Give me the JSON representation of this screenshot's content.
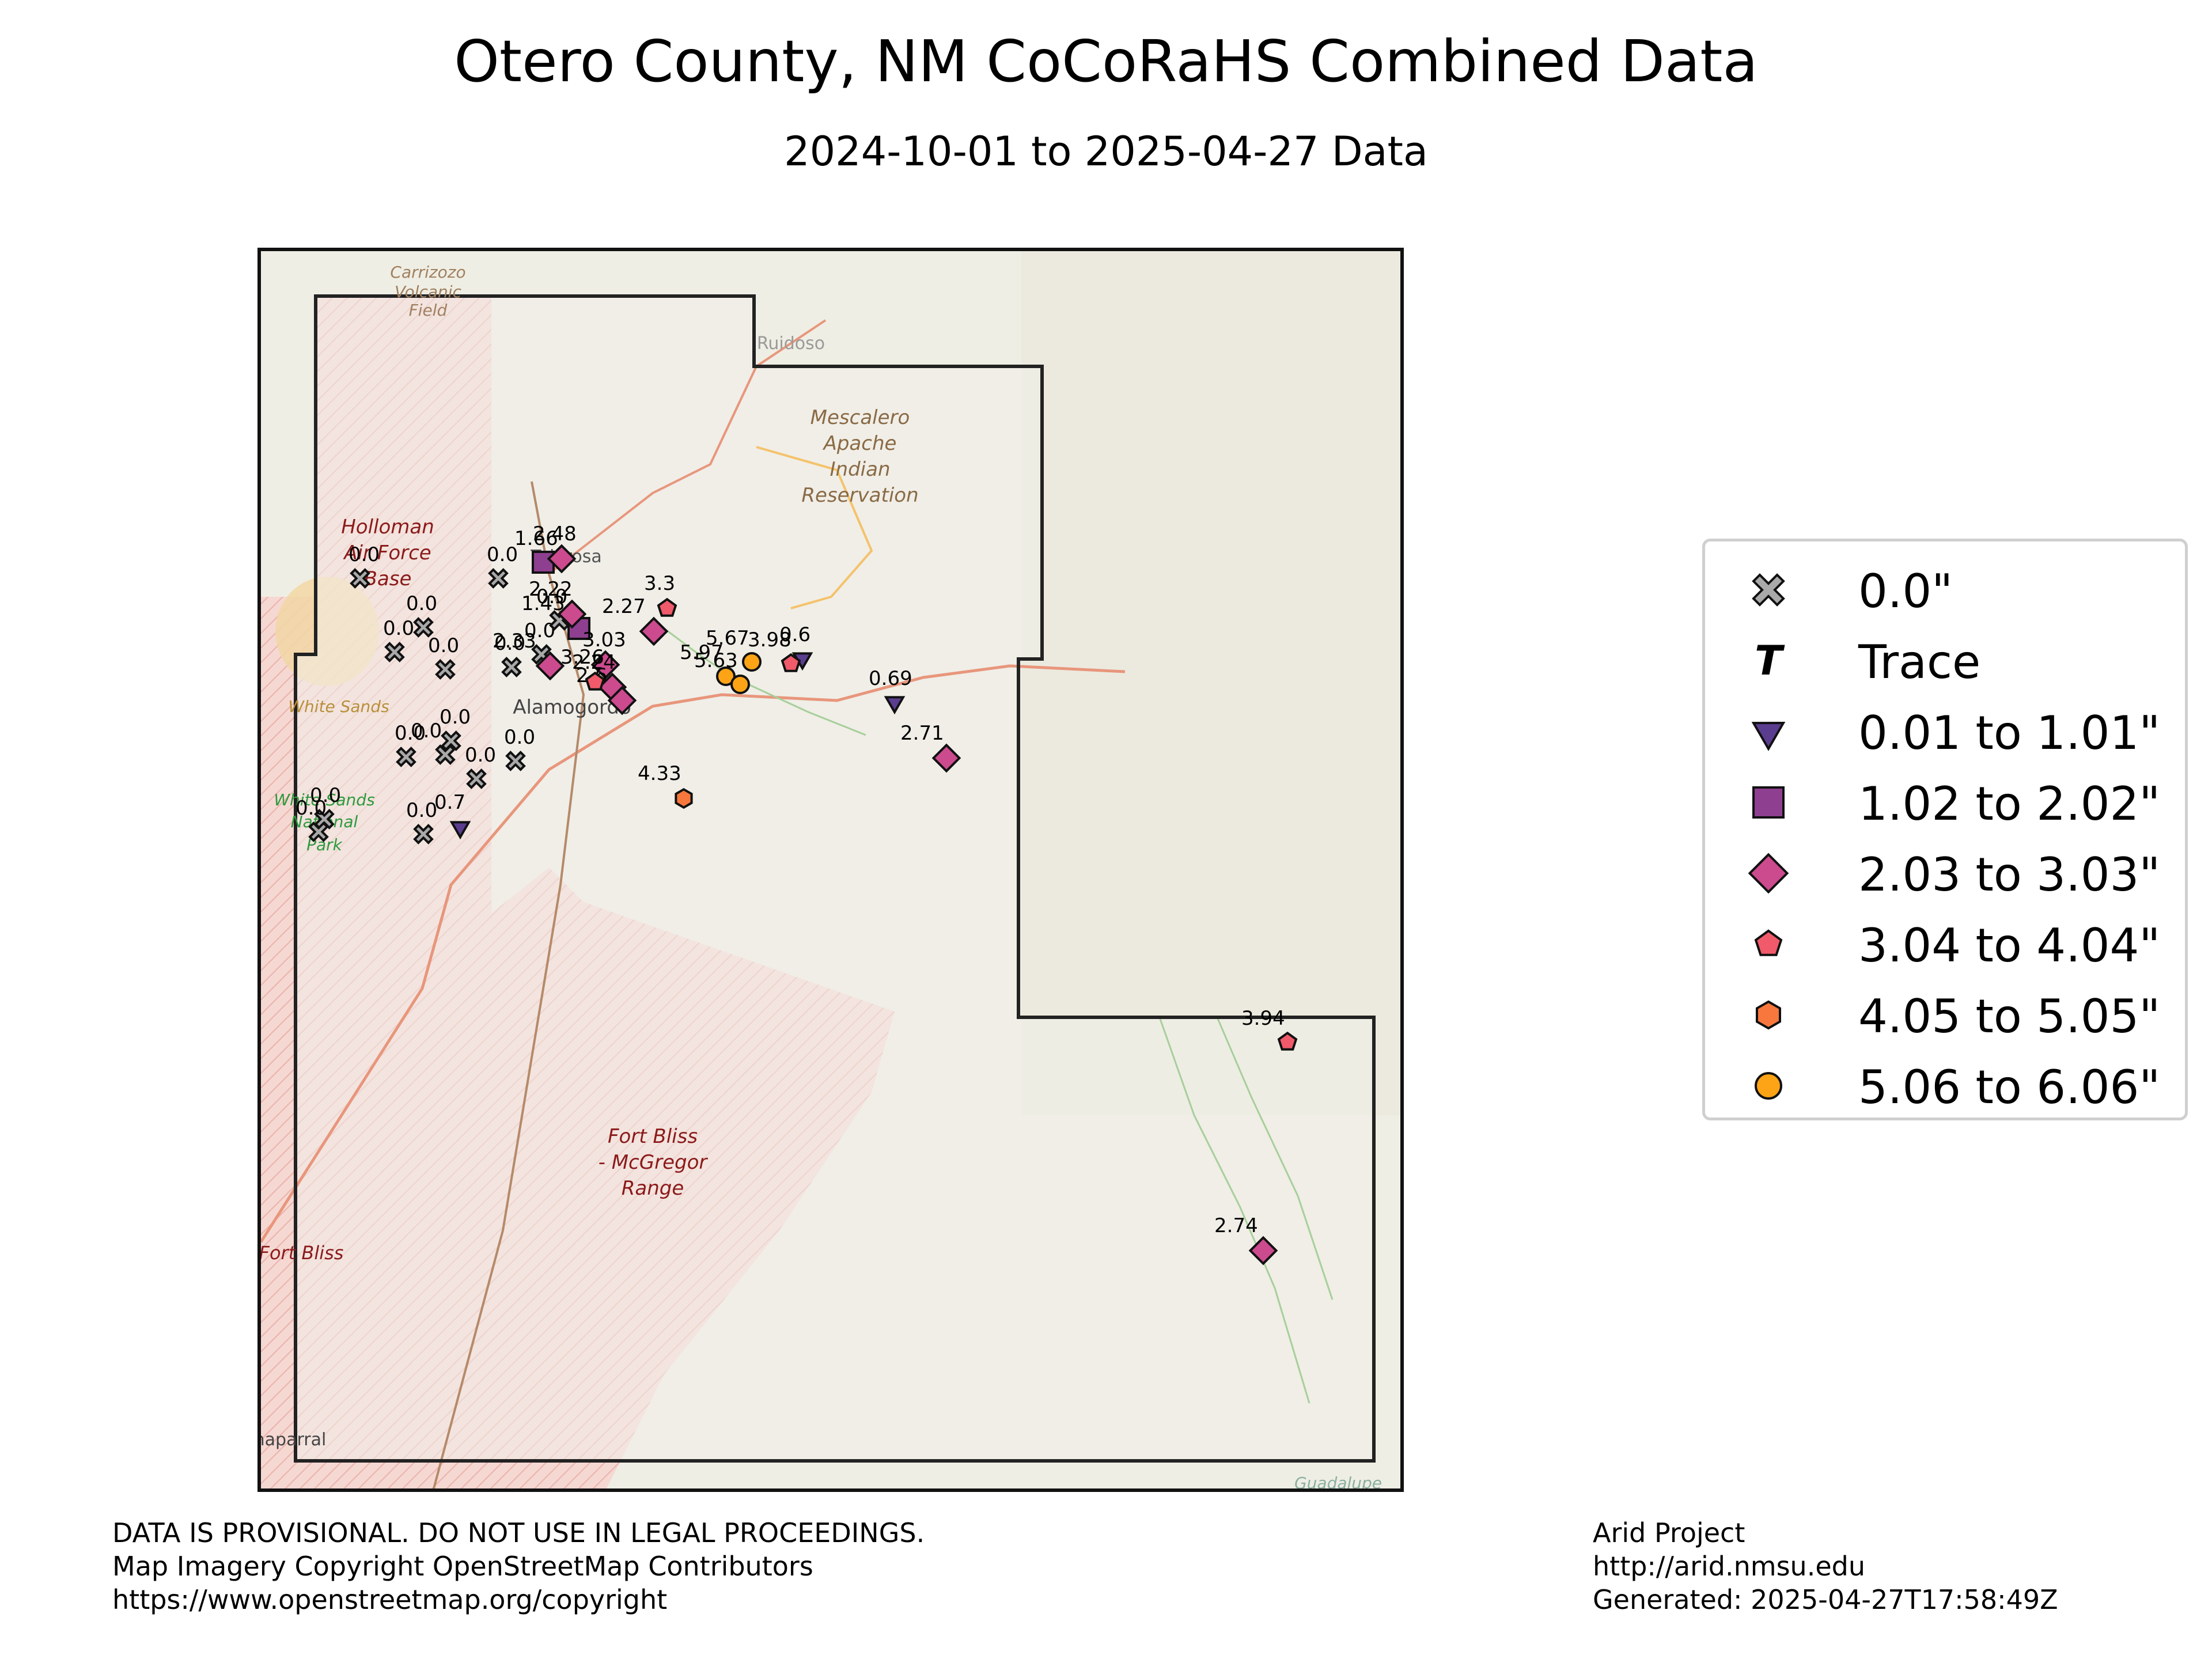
{
  "title": "Otero County, NM CoCoRaHS Combined Data",
  "subtitle": "2024-10-01 to 2025-04-27 Data",
  "map_labels": {
    "carrizozo": "Carrizozo",
    "volcanic_field": "Volcanic",
    "field": "Field",
    "ruidoso": "Ruidoso",
    "mescalero_1": "Mescalero",
    "mescalero_2": "Apache",
    "mescalero_3": "Indian",
    "mescalero_4": "Reservation",
    "holloman_1": "Holloman",
    "holloman_2": "Air Force",
    "holloman_3": "Base",
    "tularosa": "Tularosa",
    "white_sands": "White Sands",
    "wsnp_1": "White Sands",
    "wsnp_2": "National",
    "wsnp_3": "Park",
    "alamogordo": "Alamogordo",
    "fort_bliss_1": "Fort Bliss",
    "fort_bliss_2": "- McGregor",
    "fort_bliss_3": "Range",
    "fort_bliss_west": "Fort Bliss",
    "chaparral": "Chaparral",
    "guadalupe": "Guadalupe"
  },
  "stations": [
    {
      "label": "0.0",
      "category": "zero"
    },
    {
      "label": "0.0",
      "category": "zero"
    },
    {
      "label": "0.0",
      "category": "zero"
    },
    {
      "label": "0.0",
      "category": "zero"
    },
    {
      "label": "0.0",
      "category": "zero"
    },
    {
      "label": "0.0",
      "category": "zero"
    },
    {
      "label": "0.0",
      "category": "zero"
    },
    {
      "label": "0.0",
      "category": "zero"
    },
    {
      "label": "0.0",
      "category": "zero"
    },
    {
      "label": "0.0",
      "category": "zero"
    },
    {
      "label": "0.0",
      "category": "zero"
    },
    {
      "label": "0.0",
      "category": "zero"
    },
    {
      "label": "0.0",
      "category": "zero"
    },
    {
      "label": "0.0",
      "category": "zero"
    },
    {
      "label": "0.0",
      "category": "zero"
    },
    {
      "label": "0.0",
      "category": "zero"
    },
    {
      "label": "0.7",
      "category": "r1"
    },
    {
      "label": "0.69",
      "category": "r1"
    },
    {
      "label": "0.6",
      "category": "r1"
    },
    {
      "label": "1.66",
      "category": "r2"
    },
    {
      "label": "1.43",
      "category": "r2"
    },
    {
      "label": "2.48",
      "category": "r3"
    },
    {
      "label": "2.22",
      "category": "r3"
    },
    {
      "label": "2.27",
      "category": "r3"
    },
    {
      "label": "2.33",
      "category": "r3"
    },
    {
      "label": "3.03",
      "category": "r3"
    },
    {
      "label": "2.24",
      "category": "r3"
    },
    {
      "label": "2.6",
      "category": "r3"
    },
    {
      "label": "2.71",
      "category": "r3"
    },
    {
      "label": "2.74",
      "category": "r3"
    },
    {
      "label": "3.3",
      "category": "r4"
    },
    {
      "label": "3.26",
      "category": "r4"
    },
    {
      "label": "3.98",
      "category": "r4"
    },
    {
      "label": "3.94",
      "category": "r4"
    },
    {
      "label": "4.33",
      "category": "r5"
    },
    {
      "label": "5.67",
      "category": "r6"
    },
    {
      "label": "5.97",
      "category": "r6"
    },
    {
      "label": "5.63",
      "category": "r6"
    }
  ],
  "legend": [
    {
      "label": "0.0\"",
      "symbol": "x-marker-icon",
      "color": "#a9a9a9"
    },
    {
      "label": "Trace",
      "symbol": "trace-t-icon",
      "color": "#000000"
    },
    {
      "label": "0.01 to 1.01\"",
      "symbol": "triangle-down-icon",
      "color": "#5b3d8f"
    },
    {
      "label": "1.02 to 2.02\"",
      "symbol": "square-icon",
      "color": "#8e3f8f"
    },
    {
      "label": "2.03 to 3.03\"",
      "symbol": "diamond-icon",
      "color": "#cc4a8e"
    },
    {
      "label": "3.04 to 4.04\"",
      "symbol": "pentagon-icon",
      "color": "#f05a6a"
    },
    {
      "label": "4.05 to 5.05\"",
      "symbol": "hexagon-icon",
      "color": "#f7773d"
    },
    {
      "label": "5.06 to 6.06\"",
      "symbol": "circle-icon",
      "color": "#fca416"
    }
  ],
  "footer_left": "DATA IS PROVISIONAL. DO NOT USE IN LEGAL PROCEEDINGS.\nMap Imagery Copyright OpenStreetMap Contributors\nhttps://www.openstreetmap.org/copyright",
  "footer_right": "Arid Project\nhttp://arid.nmsu.edu\nGenerated: 2025-04-27T17:58:49Z"
}
